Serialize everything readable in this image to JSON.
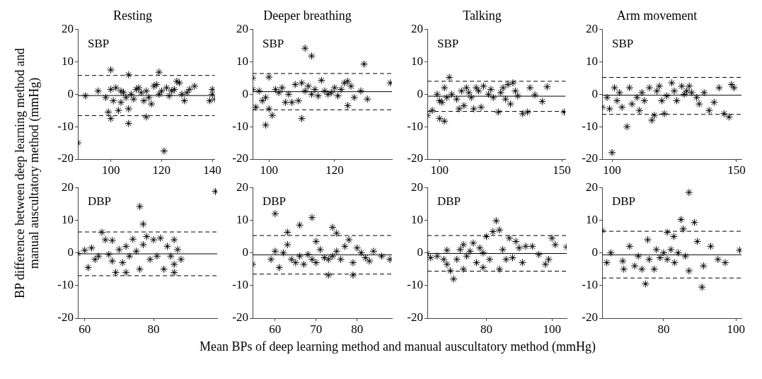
{
  "chart_data": [
    {
      "type": "scatter",
      "title": "Resting",
      "marker": "cross",
      "ylabel": "BP difference between deep learning method and manual auscultatory method (mmHg)",
      "annotations": [
        "SBP"
      ],
      "xlim": [
        87,
        141
      ],
      "xticks": [
        100,
        120,
        140
      ],
      "ylim": [
        -20,
        20
      ],
      "yticks": [
        -20,
        -10,
        0,
        10,
        20
      ],
      "series": [
        {
          "color": "#000000",
          "x": [
            87,
            90,
            95,
            98,
            99,
            100,
            100,
            100,
            101,
            102,
            103,
            104,
            104,
            105,
            106,
            107,
            107,
            107,
            108,
            109,
            110,
            111,
            112,
            113,
            114,
            114,
            115,
            116,
            117,
            118,
            119,
            119,
            120,
            121,
            122,
            123,
            124,
            125,
            126,
            127,
            128,
            129,
            130,
            131,
            133,
            139,
            140,
            140,
            141
          ],
          "values": [
            -15,
            -0.5,
            1,
            -1,
            -5.5,
            7.5,
            -7.5,
            1.5,
            -2,
            2,
            -5,
            -2.5,
            1,
            0.5,
            -1,
            6,
            -9,
            -4.5,
            0,
            -1.5,
            1.5,
            2,
            0.5,
            -2,
            -7,
            1,
            -1,
            -3,
            2.5,
            3,
            6.8,
            0,
            1,
            -17.5,
            2,
            -0.5,
            1,
            1.5,
            4,
            3.5,
            0,
            -2,
            0.5,
            1.5,
            2.5,
            -2,
            1.5,
            0,
            -1.5
          ]
        }
      ],
      "ref_lines": [
        {
          "axis": "y",
          "value": -0.4,
          "line_style": "solid"
        },
        {
          "axis": "y",
          "value": 5.8,
          "line_style": "dashed"
        },
        {
          "axis": "y",
          "value": -6.6,
          "line_style": "dashed"
        }
      ]
    },
    {
      "type": "scatter",
      "title": "Deeper breathing",
      "annotations": [
        "SBP"
      ],
      "marker": "cross",
      "xlim": [
        95,
        137.5
      ],
      "xticks": [
        100,
        120
      ],
      "ylim": [
        -20,
        20
      ],
      "yticks": [
        -20,
        -10,
        0,
        10,
        20
      ],
      "series": [
        {
          "color": "#000000",
          "x": [
            95,
            95,
            96,
            97,
            98,
            99,
            99,
            100,
            100,
            101,
            102,
            103,
            104,
            105,
            106,
            107,
            108,
            109,
            110,
            110,
            111,
            111,
            112,
            113,
            113,
            114,
            115,
            116,
            117,
            118,
            119,
            120,
            121,
            122,
            123,
            124,
            124,
            125,
            126,
            128,
            129,
            130,
            137
          ],
          "values": [
            5,
            1.5,
            -4,
            1,
            -2,
            -9.5,
            -1,
            5.3,
            -4.5,
            -6.5,
            1.5,
            0.5,
            2,
            -2.5,
            0,
            -2.5,
            3,
            -2,
            3.5,
            -7.5,
            14.2,
            1,
            2.5,
            11.8,
            0,
            1.5,
            -0.5,
            4.3,
            1,
            0,
            0.5,
            2,
            -0.5,
            1.5,
            3.5,
            4,
            -3.5,
            2.5,
            -1,
            1,
            9.3,
            -1.5,
            3.5
          ]
        }
      ],
      "ref_lines": [
        {
          "axis": "y",
          "value": 0.8,
          "line_style": "solid"
        },
        {
          "axis": "y",
          "value": 6.4,
          "line_style": "dashed"
        },
        {
          "axis": "y",
          "value": -4.8,
          "line_style": "dashed"
        }
      ]
    },
    {
      "type": "scatter",
      "title": "Talking",
      "annotations": [
        "SBP"
      ],
      "marker": "cross",
      "xlim": [
        95,
        151.5
      ],
      "xticks": [
        100,
        150
      ],
      "ylim": [
        -20,
        20
      ],
      "yticks": [
        -20,
        -10,
        0,
        10,
        20
      ],
      "series": [
        {
          "color": "#000000",
          "x": [
            95,
            97,
            99,
            100,
            100,
            101,
            102,
            102,
            103,
            104,
            105,
            107,
            108,
            109,
            110,
            111,
            112,
            113,
            114,
            115,
            116,
            117,
            118,
            120,
            121,
            122,
            124,
            125,
            126,
            127,
            128,
            129,
            130,
            131,
            132,
            134,
            136,
            137,
            139,
            142,
            144,
            151
          ],
          "values": [
            -6.5,
            -5,
            0,
            -7.5,
            -2,
            -2.5,
            -8.3,
            2,
            -1,
            5.2,
            0,
            -1.5,
            -4.5,
            1,
            -3.5,
            2,
            0.5,
            -1,
            -4.5,
            2,
            1,
            -4,
            2.5,
            0,
            1.5,
            -1,
            -5.5,
            0.5,
            2,
            -1.5,
            3,
            -3,
            3.5,
            1,
            -0.5,
            -6,
            -5.5,
            2,
            -0.2,
            -2.2,
            2.3,
            -5.5
          ]
        }
      ],
      "ref_lines": [
        {
          "axis": "y",
          "value": -0.6,
          "line_style": "solid"
        },
        {
          "axis": "y",
          "value": 4,
          "line_style": "dashed"
        },
        {
          "axis": "y",
          "value": -5.3,
          "line_style": "dashed"
        }
      ]
    },
    {
      "type": "scatter",
      "title": "Arm movement",
      "annotations": [
        "SBP"
      ],
      "marker": "cross",
      "xlim": [
        96,
        152
      ],
      "xticks": [
        100,
        150
      ],
      "ylim": [
        -20,
        20
      ],
      "yticks": [
        -20,
        -10,
        0,
        10,
        20
      ],
      "series": [
        {
          "color": "#000000",
          "x": [
            96,
            98,
            99,
            100,
            101,
            102,
            103,
            104,
            106,
            107,
            108,
            110,
            111,
            112,
            113,
            115,
            116,
            117,
            118,
            119,
            120,
            121,
            122,
            124,
            125,
            126,
            128,
            129,
            130,
            131,
            132,
            134,
            135,
            137,
            139,
            141,
            143,
            145,
            147,
            148,
            149
          ],
          "values": [
            -4,
            -1,
            -4.5,
            -18,
            2,
            -2,
            0.5,
            -4,
            -10,
            2,
            -3,
            -1,
            -5,
            0.5,
            -2,
            2,
            -8,
            -6.5,
            1,
            2.5,
            -2,
            -6,
            -0.5,
            3.5,
            1,
            -2,
            2.5,
            0,
            1,
            2.5,
            0.5,
            -1,
            -3,
            0.5,
            -5,
            -2.5,
            2,
            -6,
            -7,
            3,
            2
          ]
        }
      ],
      "ref_lines": [
        {
          "axis": "y",
          "value": -0.3,
          "line_style": "solid"
        },
        {
          "axis": "y",
          "value": 5.2,
          "line_style": "dashed"
        },
        {
          "axis": "y",
          "value": -6.2,
          "line_style": "dashed"
        }
      ]
    },
    {
      "type": "scatter",
      "annotations": [
        "DBP"
      ],
      "marker": "cross",
      "xlim": [
        58,
        98.5
      ],
      "xticks": [
        60,
        80
      ],
      "ylim": [
        -20,
        20
      ],
      "yticks": [
        -20,
        -10,
        0,
        10,
        20
      ],
      "series": [
        {
          "color": "#000000",
          "x": [
            58,
            60,
            61,
            62,
            63,
            64,
            65,
            66,
            67,
            68,
            68,
            69,
            70,
            71,
            72,
            72,
            73,
            74,
            75,
            76,
            76,
            77,
            77,
            78,
            79,
            80,
            81,
            82,
            83,
            84,
            85,
            86,
            86,
            86,
            87,
            88,
            98
          ],
          "values": [
            -0.2,
            0.8,
            -4.5,
            1.5,
            -2,
            -1,
            6.3,
            4,
            -0.5,
            3.8,
            -2.5,
            -6,
            1,
            -3,
            2,
            -6,
            -1,
            4.2,
            0.5,
            14.2,
            -5,
            8.8,
            2.5,
            5,
            -2,
            4,
            -1,
            4.5,
            -5,
            2,
            -1,
            4,
            -6,
            -3.5,
            1,
            -2,
            18.8
          ]
        }
      ],
      "ref_lines": [
        {
          "axis": "y",
          "value": -0.3,
          "line_style": "solid"
        },
        {
          "axis": "y",
          "value": 6.4,
          "line_style": "dashed"
        },
        {
          "axis": "y",
          "value": -7,
          "line_style": "dashed"
        }
      ]
    },
    {
      "type": "scatter",
      "annotations": [
        "DBP"
      ],
      "marker": "cross",
      "xlim": [
        54.5,
        88.5
      ],
      "xticks": [
        60,
        70,
        80
      ],
      "ylim": [
        -20,
        20
      ],
      "yticks": [
        -20,
        -10,
        0,
        10,
        20
      ],
      "series": [
        {
          "color": "#000000",
          "x": [
            54.5,
            59,
            60,
            60,
            61,
            62,
            63,
            63,
            64,
            65,
            66,
            66,
            67,
            68,
            69,
            69,
            70,
            70,
            71,
            72,
            73,
            73,
            74,
            74,
            75,
            75,
            76,
            77,
            78,
            79,
            79,
            80,
            81,
            82,
            83,
            84,
            86,
            88
          ],
          "values": [
            -3.5,
            -2,
            12,
            0.5,
            -4.5,
            0,
            6.3,
            2.5,
            -2,
            -3,
            8.5,
            -1,
            -3.5,
            -0.5,
            10.8,
            -2,
            3.5,
            -3,
            1,
            -1.5,
            -6.8,
            -2,
            7.8,
            -1,
            6,
            0.5,
            -2,
            2,
            4,
            -6.8,
            -3,
            1.5,
            0,
            -1.5,
            -2.5,
            0.5,
            -1,
            -2
          ]
        }
      ],
      "ref_lines": [
        {
          "axis": "y",
          "value": -0.6,
          "line_style": "solid"
        },
        {
          "axis": "y",
          "value": 5.3,
          "line_style": "dashed"
        },
        {
          "axis": "y",
          "value": -6.5,
          "line_style": "dashed"
        }
      ]
    },
    {
      "type": "scatter",
      "annotations": [
        "DBP"
      ],
      "marker": "cross",
      "xlim": [
        62,
        104.5
      ],
      "xticks": [
        80,
        100
      ],
      "ylim": [
        -20,
        20
      ],
      "yticks": [
        -20,
        -10,
        0,
        10,
        20
      ],
      "series": [
        {
          "color": "#000000",
          "x": [
            62,
            63,
            65,
            67,
            68,
            68,
            69,
            70,
            71,
            72,
            73,
            73,
            74,
            75,
            76,
            77,
            78,
            79,
            79,
            80,
            81,
            82,
            83,
            84,
            84,
            85,
            86,
            87,
            88,
            89,
            90,
            91,
            92,
            94,
            96,
            98,
            99,
            100,
            101,
            104.5
          ],
          "values": [
            -0.2,
            -1.5,
            -1,
            -2,
            0.8,
            -3.5,
            -5.5,
            -8,
            -2,
            1,
            2.5,
            -5,
            -1,
            0.5,
            3,
            -3,
            1.5,
            -4.5,
            0,
            5,
            -2,
            6.5,
            9.8,
            7,
            -5,
            1,
            -2,
            4.5,
            -1.5,
            3.5,
            1.5,
            -3,
            2,
            2,
            -0.5,
            -3.5,
            -2,
            4.5,
            2.5,
            1.8
          ]
        }
      ],
      "ref_lines": [
        {
          "axis": "y",
          "value": -0.2,
          "line_style": "solid"
        },
        {
          "axis": "y",
          "value": 5.3,
          "line_style": "dashed"
        },
        {
          "axis": "y",
          "value": -5.6,
          "line_style": "dashed"
        }
      ]
    },
    {
      "type": "scatter",
      "annotations": [
        "DBP"
      ],
      "marker": "cross",
      "xlim": [
        63,
        101.5
      ],
      "xticks": [
        80,
        100
      ],
      "ylim": [
        -20,
        20
      ],
      "yticks": [
        -20,
        -10,
        0,
        10,
        20
      ],
      "xlabel": "Mean BPs of deep learning method and manual auscultatory method (mmHg)",
      "series": [
        {
          "color": "#000000",
          "x": [
            63,
            64.3,
            65.4,
            68.7,
            69,
            70.6,
            72,
            73,
            74,
            75,
            75.6,
            76,
            77.4,
            78,
            79,
            80,
            81,
            81,
            82,
            82.8,
            83,
            84,
            84.8,
            85.4,
            86,
            87,
            87,
            88.5,
            89.3,
            90.6,
            91,
            93,
            95,
            97,
            101
          ],
          "values": [
            6.8,
            -3,
            0,
            -2.5,
            -5,
            2,
            -4,
            -1,
            -5,
            -9.5,
            4,
            -2,
            -5,
            1,
            -1.5,
            0,
            6.3,
            -2,
            1,
            5,
            -3,
            0,
            10.2,
            7.3,
            -1,
            18.5,
            -5.5,
            9.3,
            3.5,
            -10.5,
            -4,
            2,
            -2,
            -3,
            0.8
          ]
        }
      ],
      "ref_lines": [
        {
          "axis": "y",
          "value": -0.6,
          "line_style": "solid"
        },
        {
          "axis": "y",
          "value": 6.6,
          "line_style": "dashed"
        },
        {
          "axis": "y",
          "value": -7.7,
          "line_style": "dashed"
        }
      ]
    }
  ]
}
